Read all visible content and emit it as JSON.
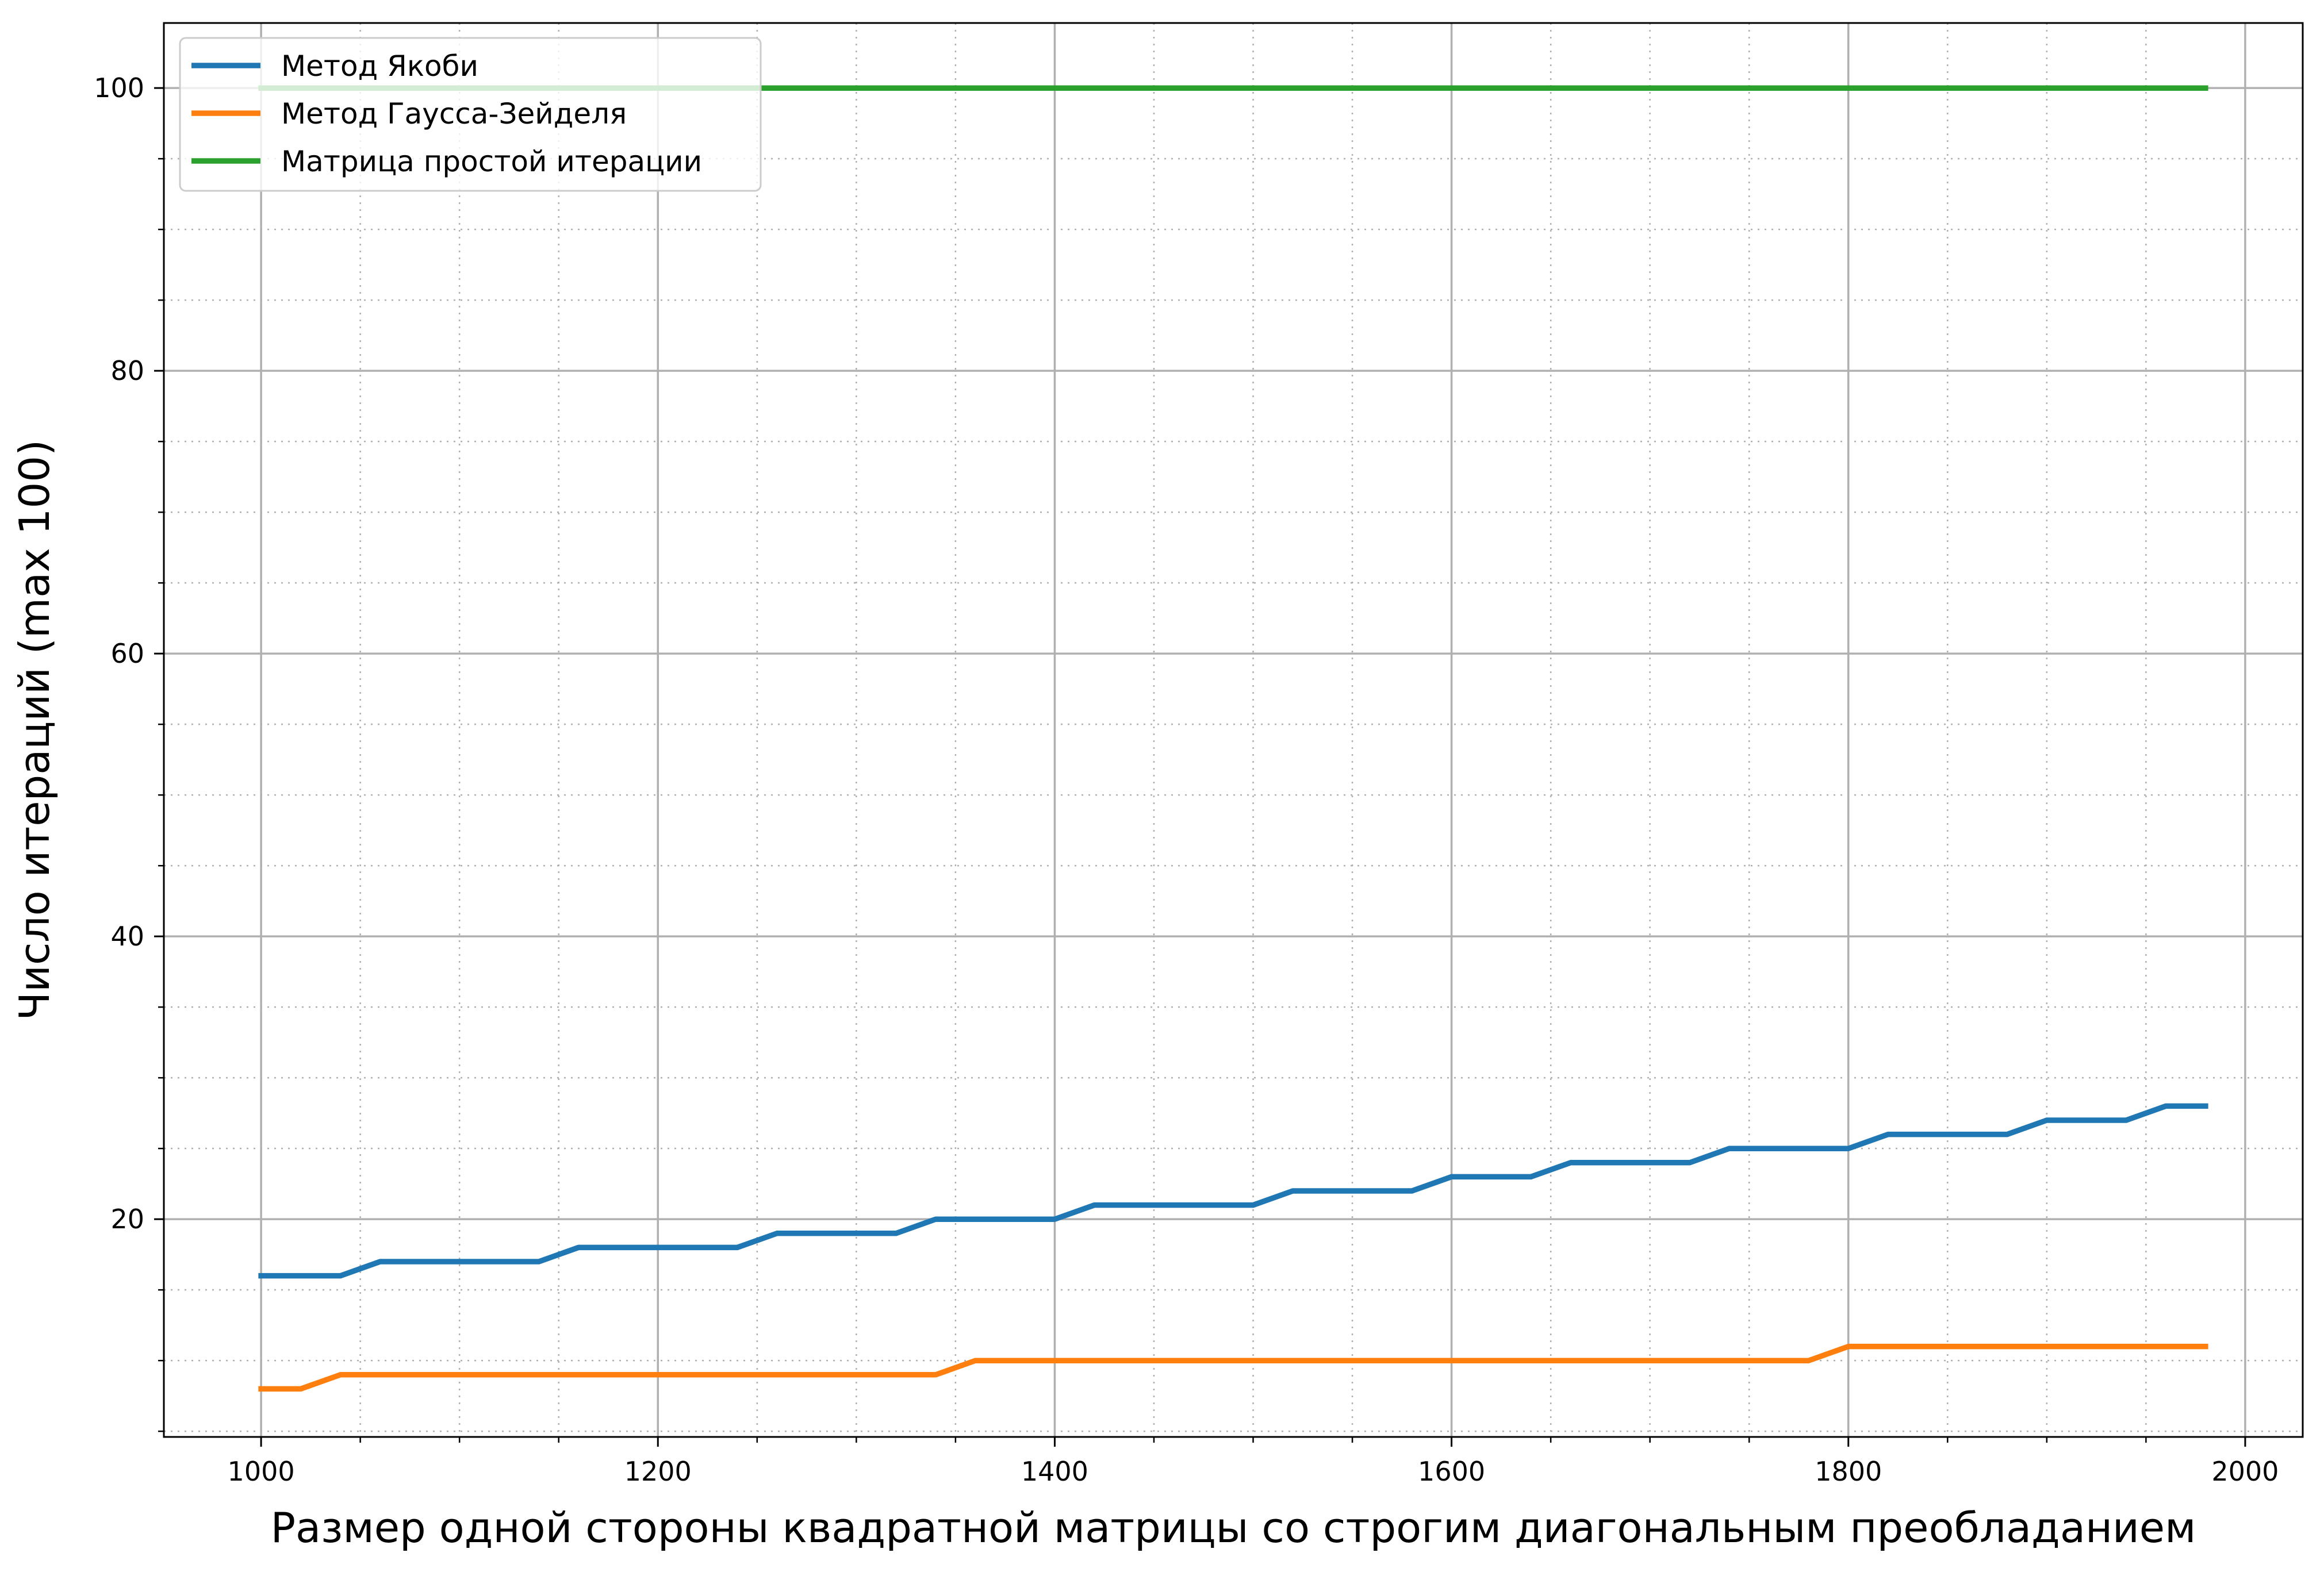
{
  "chart_data": {
    "type": "line",
    "title": "",
    "xlabel": "Размер одной стороны квадратной матрицы со строгим диагональным преобладанием",
    "ylabel": "Число итераций (max 100)",
    "xlim": [
      951,
      2029
    ],
    "ylim": [
      4.6,
      104.6
    ],
    "x_ticks": [
      1000,
      1200,
      1400,
      1600,
      1800,
      2000
    ],
    "x_tick_labels": [
      "1000",
      "1200",
      "1400",
      "1600",
      "1800",
      "2000"
    ],
    "x_minor_step": 50,
    "y_ticks": [
      20,
      40,
      60,
      80,
      100
    ],
    "y_tick_labels": [
      "20",
      "40",
      "60",
      "80",
      "100"
    ],
    "y_minor_step": 5,
    "grid": true,
    "minor_grid": true,
    "legend_position": "top-left",
    "x": [
      1000,
      1020,
      1040,
      1060,
      1080,
      1100,
      1120,
      1140,
      1160,
      1180,
      1200,
      1220,
      1240,
      1260,
      1280,
      1300,
      1320,
      1340,
      1360,
      1380,
      1400,
      1420,
      1440,
      1460,
      1480,
      1500,
      1520,
      1540,
      1560,
      1580,
      1600,
      1620,
      1640,
      1660,
      1680,
      1700,
      1720,
      1740,
      1760,
      1780,
      1800,
      1820,
      1840,
      1860,
      1880,
      1900,
      1920,
      1940,
      1960,
      1980
    ],
    "series": [
      {
        "name": "Метод Якоби",
        "color": "#1f77b4",
        "values": [
          16,
          16,
          16,
          17,
          17,
          17,
          17,
          17,
          18,
          18,
          18,
          18,
          18,
          19,
          19,
          19,
          19,
          20,
          20,
          20,
          20,
          21,
          21,
          21,
          21,
          21,
          22,
          22,
          22,
          22,
          23,
          23,
          23,
          24,
          24,
          24,
          24,
          25,
          25,
          25,
          25,
          26,
          26,
          26,
          26,
          27,
          27,
          27,
          28,
          28
        ]
      },
      {
        "name": "Метод Гаусса-Зейделя",
        "color": "#ff7f0e",
        "values": [
          8,
          8,
          9,
          9,
          9,
          9,
          9,
          9,
          9,
          9,
          9,
          9,
          9,
          9,
          9,
          9,
          9,
          9,
          10,
          10,
          10,
          10,
          10,
          10,
          10,
          10,
          10,
          10,
          10,
          10,
          10,
          10,
          10,
          10,
          10,
          10,
          10,
          10,
          10,
          10,
          11,
          11,
          11,
          11,
          11,
          11,
          11,
          11,
          11,
          11
        ]
      },
      {
        "name": "Матрица простой итерации",
        "color": "#2ca02c",
        "values": [
          100,
          100,
          100,
          100,
          100,
          100,
          100,
          100,
          100,
          100,
          100,
          100,
          100,
          100,
          100,
          100,
          100,
          100,
          100,
          100,
          100,
          100,
          100,
          100,
          100,
          100,
          100,
          100,
          100,
          100,
          100,
          100,
          100,
          100,
          100,
          100,
          100,
          100,
          100,
          100,
          100,
          100,
          100,
          100,
          100,
          100,
          100,
          100,
          100,
          100
        ]
      }
    ]
  }
}
